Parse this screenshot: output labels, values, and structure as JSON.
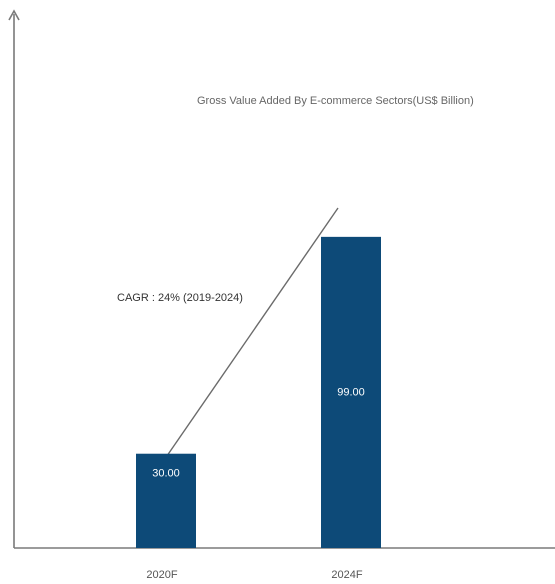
{
  "chart_data": {
    "type": "bar",
    "title": "Gross Value Added By E-commerce Sectors(US$ Billion)",
    "categories": [
      "2020F",
      "2024F"
    ],
    "values": [
      30.0,
      99.0
    ],
    "value_labels": [
      "30.00",
      "99.00"
    ],
    "annotation": "CAGR : 24% (2019-2024)",
    "xlabel": "",
    "ylabel": "",
    "ylim": [
      0,
      140
    ],
    "grid": false,
    "bar_color": "#0d4a78",
    "axis_color": "#7a7a7a"
  }
}
